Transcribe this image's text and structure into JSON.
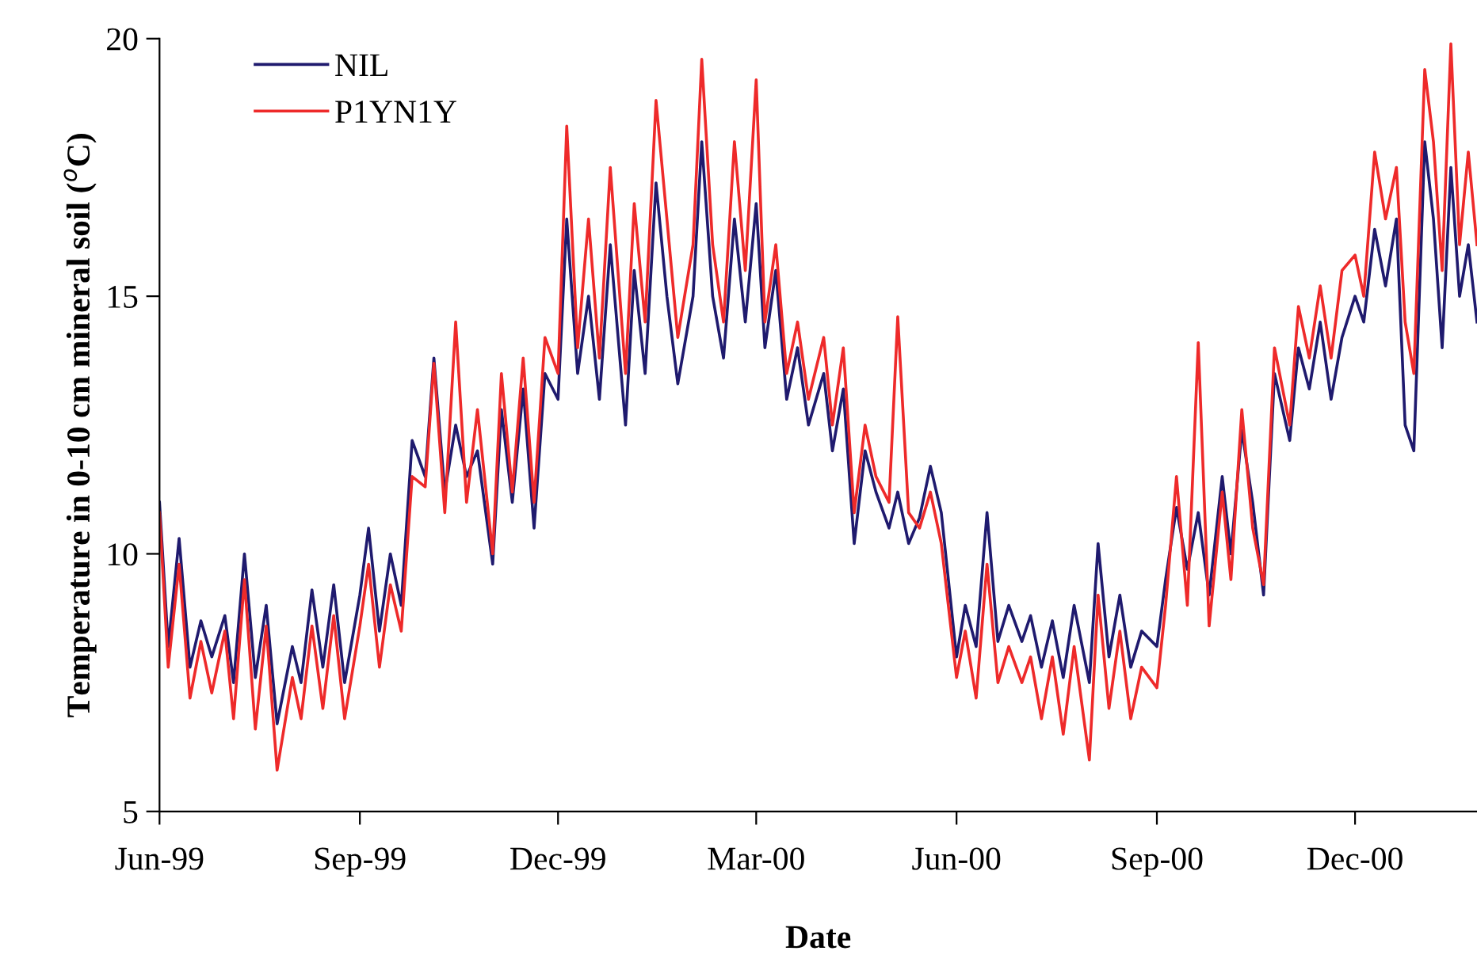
{
  "chart_data": {
    "type": "line",
    "xlabel": "Date",
    "ylabel": "Temperature in 0-10 cm mineral soil ($^{o}$C)",
    "x": [
      "1999-06-01",
      "1999-06-05",
      "1999-06-10",
      "1999-06-15",
      "1999-06-20",
      "1999-06-25",
      "1999-07-01",
      "1999-07-05",
      "1999-07-10",
      "1999-07-15",
      "1999-07-20",
      "1999-07-25",
      "1999-08-01",
      "1999-08-05",
      "1999-08-10",
      "1999-08-15",
      "1999-08-20",
      "1999-08-25",
      "1999-09-01",
      "1999-09-05",
      "1999-09-10",
      "1999-09-15",
      "1999-09-20",
      "1999-09-25",
      "1999-10-01",
      "1999-10-05",
      "1999-10-10",
      "1999-10-15",
      "1999-10-20",
      "1999-10-25",
      "1999-11-01",
      "1999-11-05",
      "1999-11-10",
      "1999-11-15",
      "1999-11-20",
      "1999-11-25",
      "1999-12-01",
      "1999-12-05",
      "1999-12-10",
      "1999-12-15",
      "1999-12-20",
      "1999-12-25",
      "2000-01-01",
      "2000-01-05",
      "2000-01-10",
      "2000-01-15",
      "2000-01-20",
      "2000-01-25",
      "2000-02-01",
      "2000-02-05",
      "2000-02-10",
      "2000-02-15",
      "2000-02-20",
      "2000-02-25",
      "2000-03-01",
      "2000-03-05",
      "2000-03-10",
      "2000-03-15",
      "2000-03-20",
      "2000-03-25",
      "2000-04-01",
      "2000-04-05",
      "2000-04-10",
      "2000-04-15",
      "2000-04-20",
      "2000-04-25",
      "2000-05-01",
      "2000-05-05",
      "2000-05-10",
      "2000-05-15",
      "2000-05-20",
      "2000-05-25",
      "2000-06-01",
      "2000-06-05",
      "2000-06-10",
      "2000-06-15",
      "2000-06-20",
      "2000-06-25",
      "2000-07-01",
      "2000-07-05",
      "2000-07-10",
      "2000-07-15",
      "2000-07-20",
      "2000-07-25",
      "2000-08-01",
      "2000-08-05",
      "2000-08-10",
      "2000-08-15",
      "2000-08-20",
      "2000-08-25",
      "2000-09-01",
      "2000-09-05",
      "2000-09-10",
      "2000-09-15",
      "2000-09-20",
      "2000-09-25",
      "2000-10-01",
      "2000-10-05",
      "2000-10-10",
      "2000-10-15",
      "2000-10-20",
      "2000-10-25",
      "2000-11-01",
      "2000-11-05",
      "2000-11-10",
      "2000-11-15",
      "2000-11-20",
      "2000-11-25",
      "2000-12-01",
      "2000-12-05",
      "2000-12-10",
      "2000-12-15",
      "2000-12-20",
      "2000-12-24",
      "2000-12-28",
      "2001-01-02",
      "2001-01-06",
      "2001-01-10",
      "2001-01-14",
      "2001-01-18",
      "2001-01-22",
      "2001-01-26"
    ],
    "series": [
      {
        "name": "NIL",
        "color": "#1f1a6e",
        "values": [
          11.0,
          8.2,
          10.3,
          7.8,
          8.7,
          8.0,
          8.8,
          7.5,
          10.0,
          7.6,
          9.0,
          6.7,
          8.2,
          7.5,
          9.3,
          7.8,
          9.4,
          7.5,
          9.2,
          10.5,
          8.5,
          10.0,
          9.0,
          12.2,
          11.5,
          13.8,
          11.2,
          12.5,
          11.5,
          12.0,
          9.8,
          12.8,
          11.0,
          13.2,
          10.5,
          13.5,
          13.0,
          16.5,
          13.5,
          15.0,
          13.0,
          16.0,
          12.5,
          15.5,
          13.5,
          17.2,
          15.0,
          13.3,
          15.0,
          18.0,
          15.0,
          13.8,
          16.5,
          14.5,
          16.8,
          14.0,
          15.5,
          13.0,
          14.0,
          12.5,
          13.5,
          12.0,
          13.2,
          10.2,
          12.0,
          11.2,
          10.5,
          11.2,
          10.2,
          10.7,
          11.7,
          10.8,
          8.0,
          9.0,
          8.2,
          10.8,
          8.3,
          9.0,
          8.3,
          8.8,
          7.8,
          8.7,
          7.6,
          9.0,
          7.5,
          10.2,
          8.0,
          9.2,
          7.8,
          8.5,
          8.2,
          9.5,
          10.9,
          9.7,
          10.8,
          9.2,
          11.5,
          10.0,
          12.4,
          11.0,
          9.2,
          13.5,
          12.2,
          14.0,
          13.2,
          14.5,
          13.0,
          14.2,
          15.0,
          14.5,
          16.3,
          15.2,
          16.5,
          12.5,
          12.0,
          18.0,
          16.5,
          14.0,
          17.5,
          15.0,
          16.0,
          14.5
        ]
      },
      {
        "name": "P1YN1Y",
        "color": "#ee2a2a",
        "values": [
          10.8,
          7.8,
          9.8,
          7.2,
          8.3,
          7.3,
          8.5,
          6.8,
          9.5,
          6.6,
          8.6,
          5.8,
          7.6,
          6.8,
          8.6,
          7.0,
          8.8,
          6.8,
          8.6,
          9.8,
          7.8,
          9.4,
          8.5,
          11.5,
          11.3,
          13.7,
          10.8,
          14.5,
          11.0,
          12.8,
          10.0,
          13.5,
          11.2,
          13.8,
          11.0,
          14.2,
          13.5,
          18.3,
          14.0,
          16.5,
          13.8,
          17.5,
          13.5,
          16.8,
          14.5,
          18.8,
          16.5,
          14.2,
          16.0,
          19.6,
          16.0,
          14.5,
          18.0,
          15.5,
          19.2,
          14.5,
          16.0,
          13.5,
          14.5,
          13.0,
          14.2,
          12.5,
          14.0,
          10.8,
          12.5,
          11.5,
          11.0,
          14.6,
          10.8,
          10.5,
          11.2,
          10.2,
          7.6,
          8.5,
          7.2,
          9.8,
          7.5,
          8.2,
          7.5,
          8.0,
          6.8,
          8.0,
          6.5,
          8.2,
          6.0,
          9.2,
          7.0,
          8.5,
          6.8,
          7.8,
          7.4,
          9.0,
          11.5,
          9.0,
          14.1,
          8.6,
          11.2,
          9.5,
          12.8,
          10.5,
          9.4,
          14.0,
          12.5,
          14.8,
          13.8,
          15.2,
          13.8,
          15.5,
          15.8,
          15.0,
          17.8,
          16.5,
          17.5,
          14.5,
          13.5,
          19.4,
          18.0,
          15.5,
          19.9,
          16.0,
          17.8,
          16.0
        ]
      }
    ],
    "xlim": [
      "1999-06-01",
      "2001-01-26"
    ],
    "xticks": [
      {
        "value": "1999-06-01",
        "label": "Jun-99"
      },
      {
        "value": "1999-09-01",
        "label": "Sep-99"
      },
      {
        "value": "1999-12-01",
        "label": "Dec-99"
      },
      {
        "value": "2000-03-01",
        "label": "Mar-00"
      },
      {
        "value": "2000-06-01",
        "label": "Jun-00"
      },
      {
        "value": "2000-09-01",
        "label": "Sep-00"
      },
      {
        "value": "2000-12-01",
        "label": "Dec-00"
      }
    ],
    "ylim": [
      5,
      20
    ],
    "yticks": [
      5,
      10,
      15,
      20
    ],
    "legend": "top left",
    "grid": false,
    "marker": "none",
    "line_style": "solid"
  }
}
